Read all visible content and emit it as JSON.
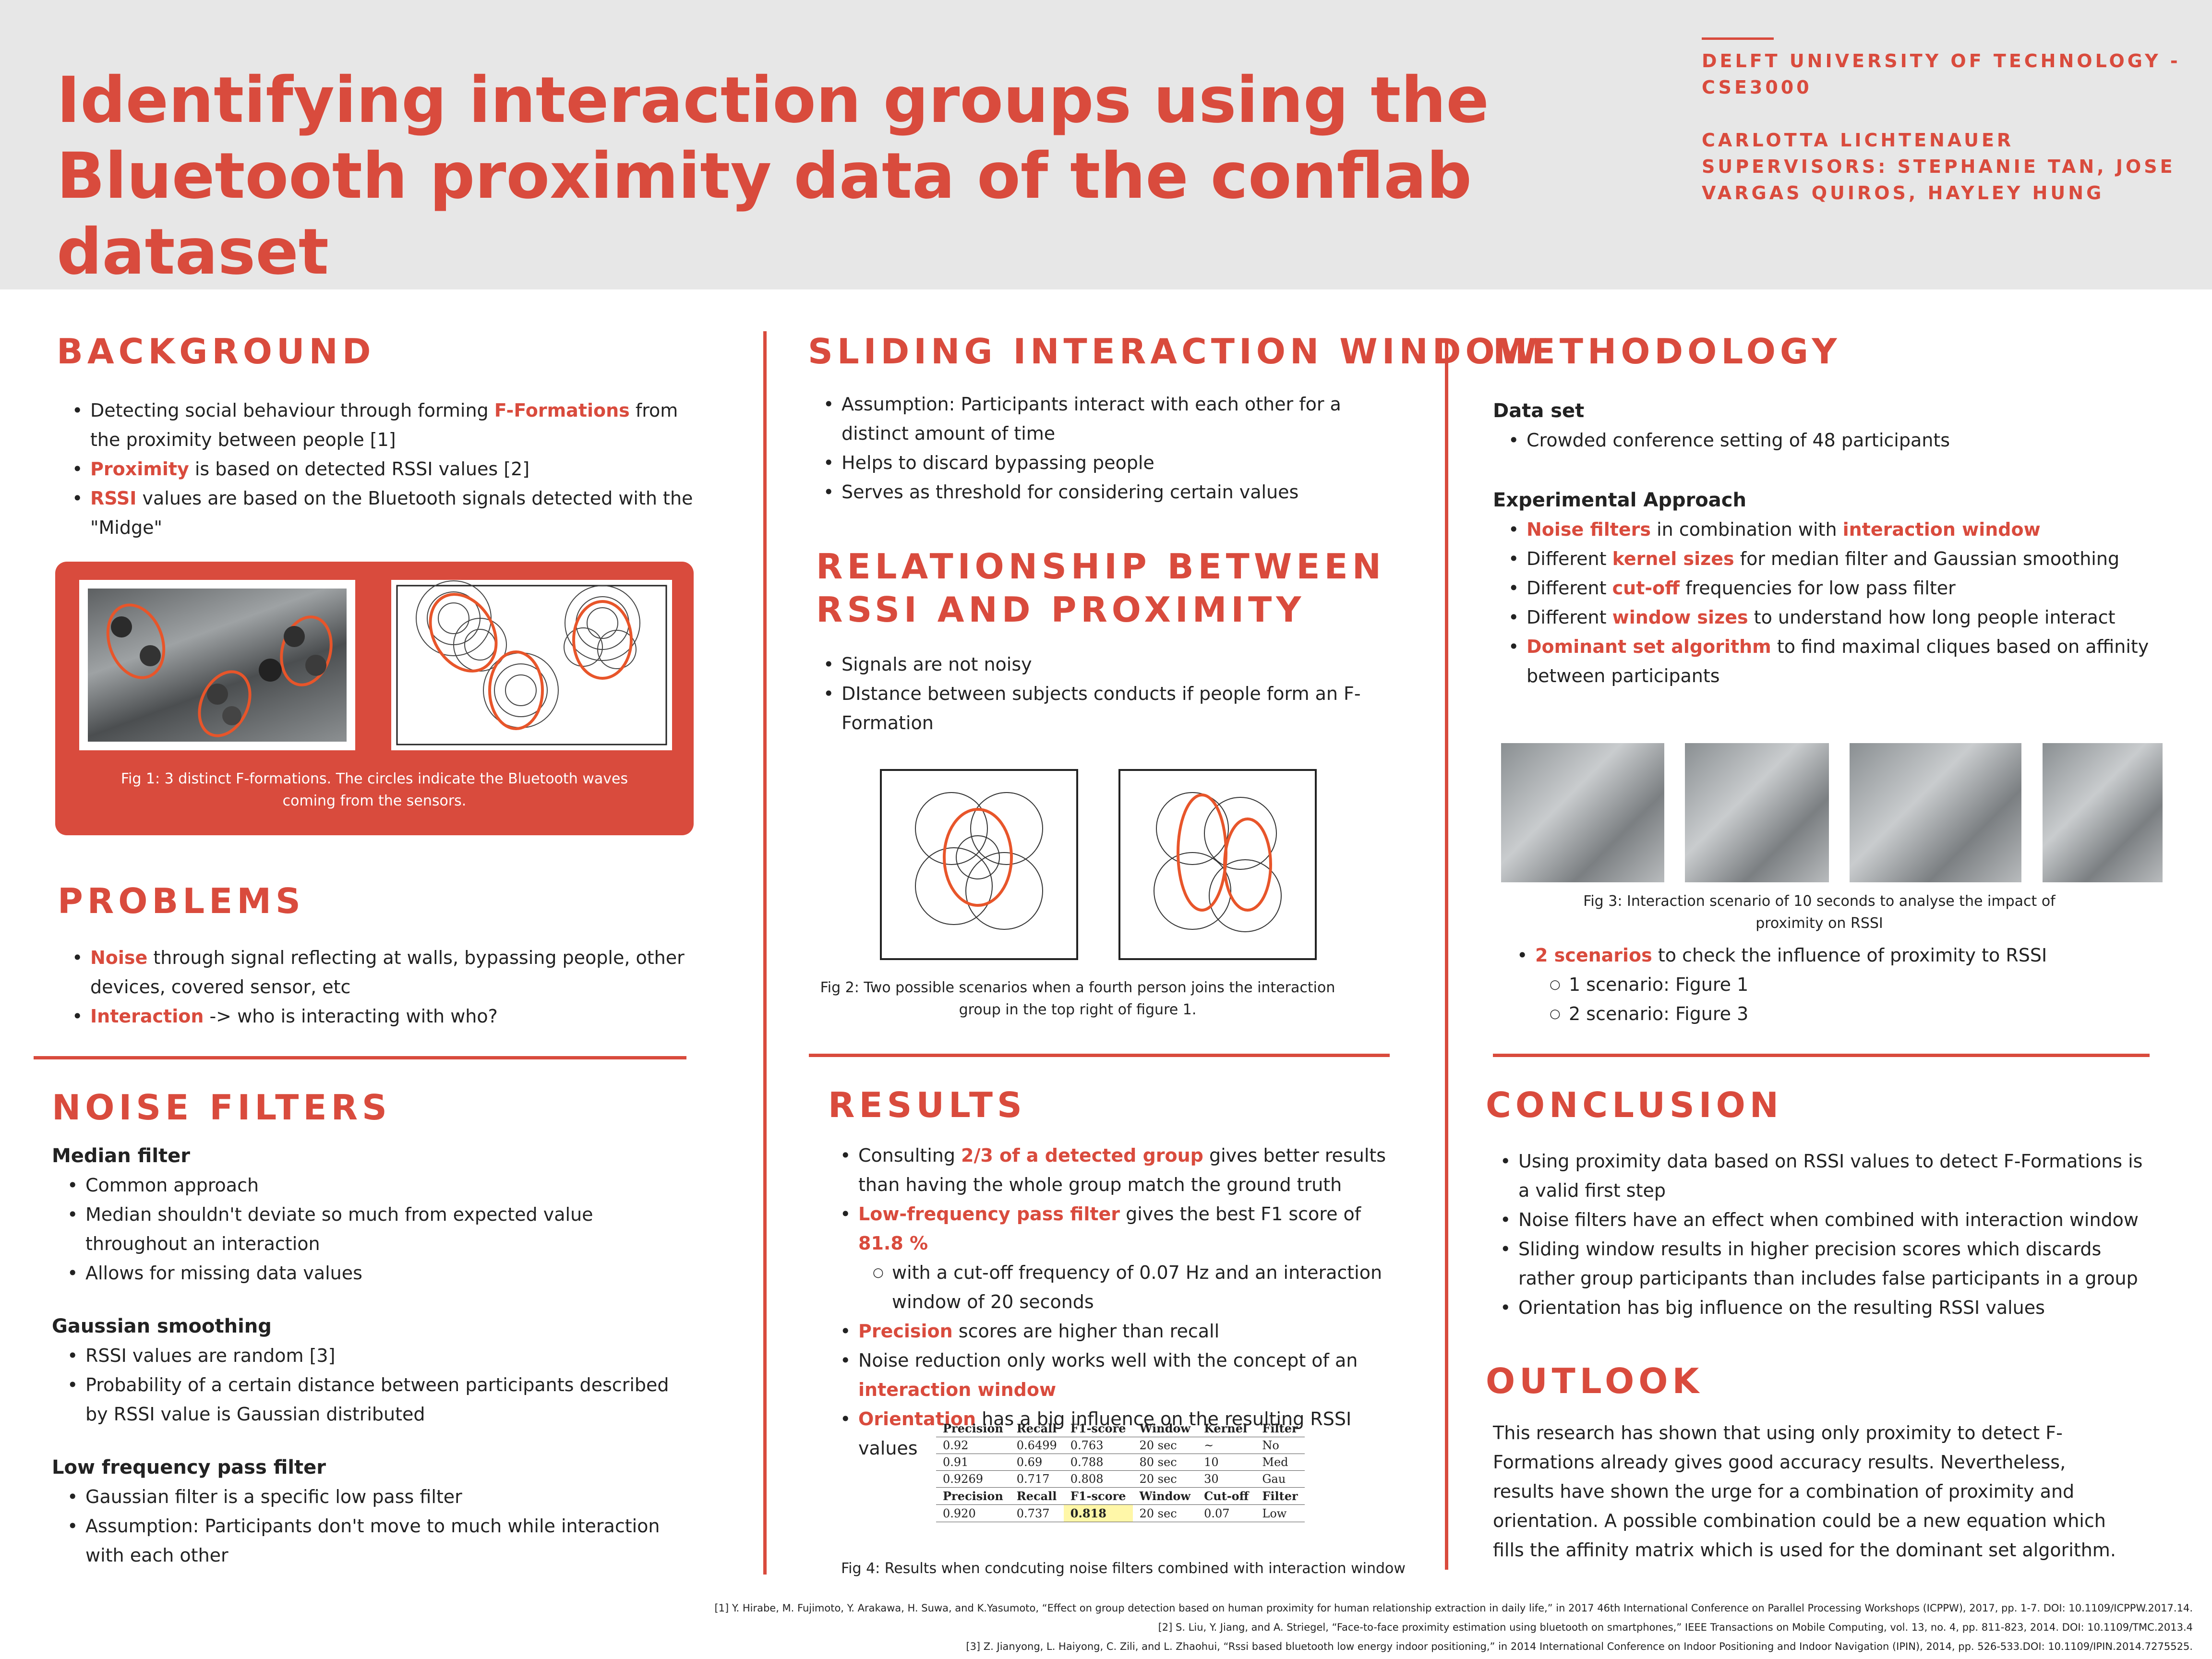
{
  "header": {
    "title_line1": "Identifying interaction groups using the",
    "title_line2": "Bluetooth proximity data of the conflab dataset",
    "affiliation_line1": "DELFT UNIVERSITY OF TECHNOLOGY -",
    "affiliation_line2": "CSE3000",
    "author": "CARLOTTA LICHTENAUER",
    "supervisors_line1": "SUPERVISORS: STEPHANIE TAN, JOSE",
    "supervisors_line2": "VARGAS QUIROS, HAYLEY HUNG"
  },
  "background": {
    "heading": "BACKGROUND",
    "b1_pre": "Detecting social behaviour through forming ",
    "b1_em": "F-Formations",
    "b1_post": " from the proximity between people [1]",
    "b2_em": "Proximity",
    "b2_post": " is based on detected RSSI values [2]",
    "b3_em": "RSSI",
    "b3_post": " values are based on the Bluetooth signals detected with the \"Midge\"",
    "fig_caption": "Fig 1: 3 distinct F-formations. The circles indicate the Bluetooth waves coming from the sensors."
  },
  "problems": {
    "heading": "PROBLEMS",
    "b1_em": "Noise",
    "b1_post": " through signal reflecting at walls, bypassing people, other devices, covered sensor, etc",
    "b2_em": "Interaction",
    "b2_post": " -> who is interacting with who?"
  },
  "noise": {
    "heading": "NOISE FILTERS",
    "median_title": "Median filter",
    "median_items": [
      "Common approach",
      "Median shouldn't deviate so much from expected value throughout an interaction",
      "Allows for missing data values"
    ],
    "gauss_title": "Gaussian smoothing",
    "gauss_items": [
      "RSSI values are random [3]",
      "Probability of a certain distance between participants described by RSSI value is Gaussian distributed"
    ],
    "low_title": "Low frequency pass filter",
    "low_items": [
      "Gaussian filter is a specific low pass filter",
      "Assumption: Participants don't move to much while interaction with each other"
    ]
  },
  "sliding": {
    "heading": "SLIDING INTERACTION WINDOW",
    "items": [
      "Assumption: Participants interact with each other for a distinct amount of time",
      "Helps to discard bypassing people",
      "Serves as threshold for considering certain values"
    ]
  },
  "relationship": {
    "heading_line1": "RELATIONSHIP BETWEEN",
    "heading_line2": "RSSI AND PROXIMITY",
    "items": [
      "Signals are not noisy",
      "DIstance between subjects conducts if people form an F-Formation"
    ],
    "fig_caption": "Fig 2: Two possible scenarios when a fourth person joins the interaction group in the top right of figure 1."
  },
  "results": {
    "heading": "RESULTS",
    "b1_pre": "Consulting ",
    "b1_em": "2/3 of a detected group",
    "b1_post": " gives better results than having the whole group match the ground truth",
    "b2_em": "Low-frequency pass filter",
    "b2_mid": " gives the best F1 score of ",
    "b2_em2": "81.8 %",
    "b2_sub": "with a cut-off frequency of 0.07 Hz and an interaction window of 20 seconds",
    "b3_em": "Precision",
    "b3_post": " scores are higher than recall",
    "b4_pre": "Noise reduction only works well with the concept of an ",
    "b4_em": "interaction window",
    "b5_em": "Orientation",
    "b5_post": " has a big influence on the resulting RSSI values",
    "fig_caption": "Fig 4: Results when condcuting noise filters combined with interaction window"
  },
  "table": {
    "header1": [
      "Precision",
      "Recall",
      "F1-score",
      "Window",
      "Kernel",
      "Filter"
    ],
    "rows1": [
      [
        "0.92",
        "0.6499",
        "0.763",
        "20 sec",
        "~",
        "No"
      ],
      [
        "0.91",
        "0.69",
        "0.788",
        "80 sec",
        "10",
        "Med"
      ],
      [
        "0.9269",
        "0.717",
        "0.808",
        "20 sec",
        "30",
        "Gau"
      ]
    ],
    "header2": [
      "Precision",
      "Recall",
      "F1-score",
      "Window",
      "Cut-off",
      "Filter"
    ],
    "rows2": [
      [
        "0.920",
        "0.737",
        "0.818",
        "20 sec",
        "0.07",
        "Low"
      ]
    ]
  },
  "methodology": {
    "heading": "METHODOLOGY",
    "dataset_title": "Data set",
    "dataset_item": "Crowded conference setting of 48 participants",
    "exp_title": "Experimental Approach",
    "e1_em": "Noise filters",
    "e1_mid": " in combination with ",
    "e1_em2": "interaction window",
    "e2_pre": "Different ",
    "e2_em": "kernel sizes",
    "e2_post": " for median filter and Gaussian smoothing",
    "e3_pre": "Different ",
    "e3_em": "cut-off",
    "e3_post": " frequencies for low pass filter",
    "e4_pre": "Different ",
    "e4_em": "window sizes",
    "e4_post": " to understand how long people interact",
    "e5_em": "Dominant set algorithm",
    "e5_post": " to find maximal cliques based on affinity between participants",
    "fig_caption": "Fig 3: Interaction scenario of 10 seconds to analyse the impact of proximity on RSSI",
    "s_em": "2 scenarios",
    "s_post": " to check the influence of proximity to RSSI",
    "s_sub1": "1 scenario: Figure 1",
    "s_sub2": "2 scenario: Figure 3"
  },
  "conclusion": {
    "heading": "CONCLUSION",
    "items": [
      "Using proximity data based on RSSI values to detect F-Formations is a valid first step",
      "Noise filters have an effect when combined with interaction window",
      "Sliding window results in higher precision scores which discards rather group participants than includes false participants in a group",
      "Orientation has big influence on the resulting RSSI values"
    ]
  },
  "outlook": {
    "heading": "OUTLOOK",
    "text": "This research has shown that using only proximity to detect F-Formations already gives good accuracy results. Nevertheless, results have shown the urge for a combination of proximity and orientation. A possible combination could be a new equation which fills the affinity matrix which is used for the dominant set algorithm."
  },
  "references": [
    "[1] Y. Hirabe, M. Fujimoto, Y. Arakawa, H. Suwa, and K.Yasumoto, “Effect on group detection based on human proximity for human relationship extraction in daily life,” in 2017 46th International Conference on Parallel Processing Workshops (ICPPW), 2017, pp. 1-7. DOI: 10.1109/ICPPW.2017.14.",
    "[2] S. Liu, Y. Jiang, and A. Striegel, “Face-to-face proximity estimation using bluetooth on smartphones,” IEEE Transactions on Mobile Computing, vol. 13, no. 4, pp. 811-823, 2014. DOI: 10.1109/TMC.2013.4",
    "[3] Z. Jianyong, L. Haiyong, C. Zili, and L. Zhaohui, “Rssi based bluetooth low energy indoor positioning,” in 2014 International Conference on Indoor Positioning and Indoor Navigation (IPIN), 2014, pp. 526-533.DOI: 10.1109/IPIN.2014.7275525."
  ]
}
